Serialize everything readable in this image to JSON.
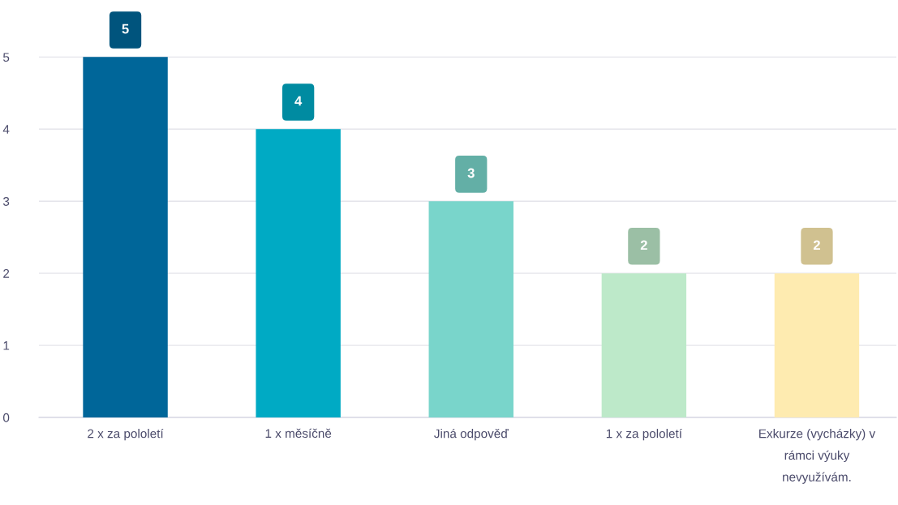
{
  "chart_data": {
    "type": "bar",
    "categories": [
      "2 x za pololetí",
      "1 x měsíčně",
      "Jiná odpověď",
      "1 x za pololetí",
      "Exkurze (vycházky) v\nrámci výuky\nnevyužívám."
    ],
    "values": [
      5,
      4,
      3,
      2,
      2
    ],
    "colors": [
      "#006699",
      "#00aac4",
      "#79d5cb",
      "#bde9c9",
      "#feebb0"
    ],
    "ylim": [
      0,
      5.6
    ],
    "yticks": [
      0,
      1,
      2,
      3,
      4,
      5
    ],
    "grid": "y",
    "data_labels": true
  }
}
